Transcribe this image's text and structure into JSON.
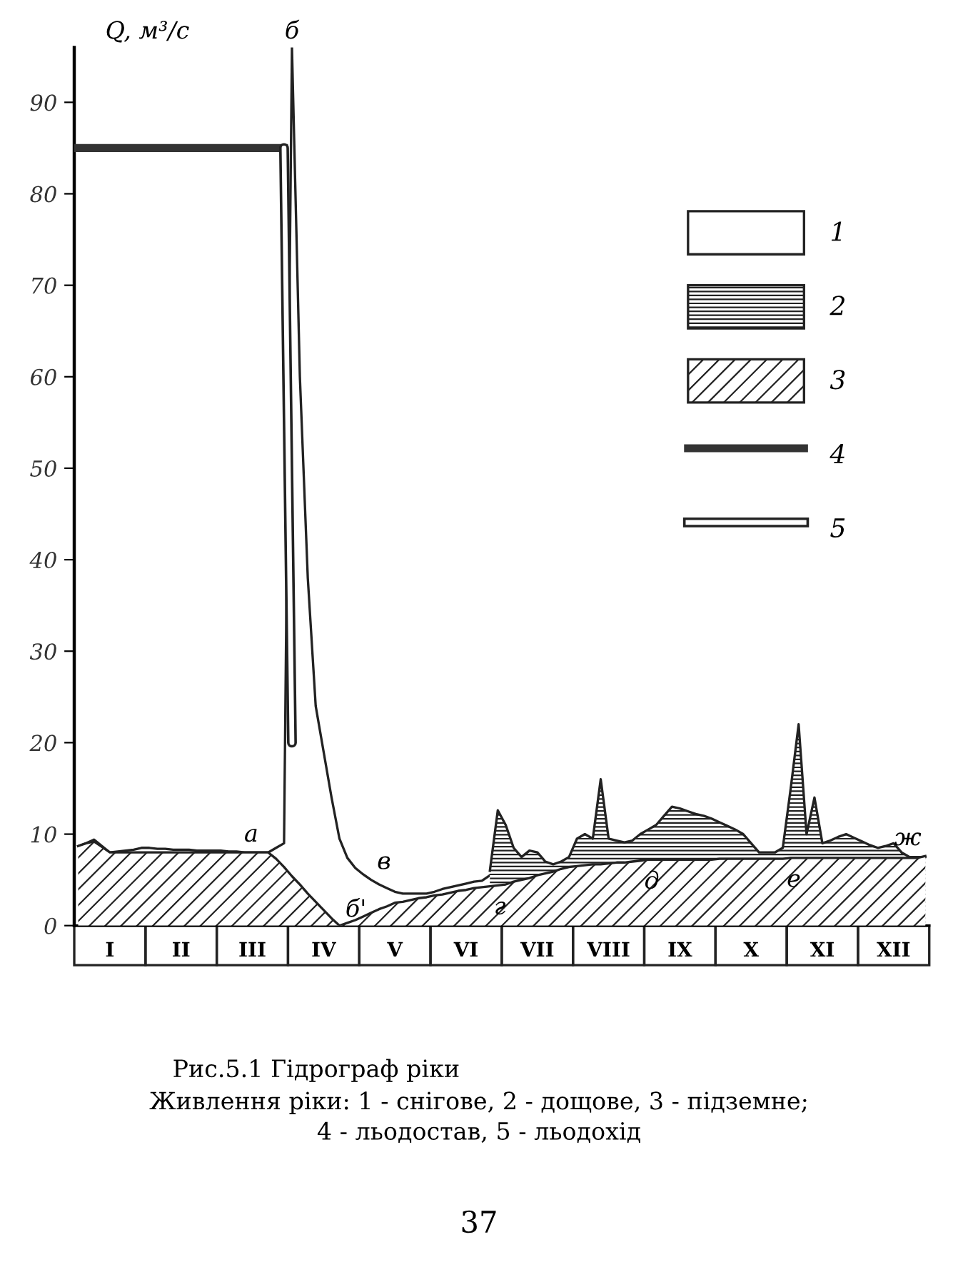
{
  "chart_data": {
    "type": "area",
    "title": "Рис.5.1 Гідрограф ріки",
    "ylabel": "Q, м³/с",
    "ylim": [
      0,
      96
    ],
    "yticks": [
      0,
      10,
      20,
      30,
      40,
      50,
      60,
      70,
      80,
      90
    ],
    "categories": [
      null,
      null,
      null,
      null,
      "I",
      null,
      null,
      null,
      null,
      null,
      null,
      null,
      null,
      "II",
      null,
      null,
      null,
      null,
      null,
      null,
      null,
      null,
      "III",
      null,
      null,
      null,
      null,
      null,
      null,
      null,
      null,
      "IV",
      null,
      null,
      null,
      null,
      null,
      null,
      null,
      null,
      "V",
      null,
      null,
      null,
      null,
      null,
      null,
      null,
      null,
      "VI",
      null,
      null,
      null,
      null,
      null,
      null,
      null,
      null,
      "VII",
      null,
      null,
      null,
      null,
      null,
      null,
      null,
      null,
      "VIII",
      null,
      null,
      null,
      null,
      null,
      null,
      null,
      null,
      "IX",
      null,
      null,
      null,
      null,
      null,
      null,
      null,
      null,
      "X",
      null,
      null,
      null,
      null,
      null,
      null,
      null,
      null,
      "XI",
      null,
      null,
      null,
      null,
      null,
      null,
      null,
      null,
      "XII",
      null,
      null,
      null,
      null
    ],
    "series": [
      {
        "name": "1",
        "color": "#ffffff",
        "values": [
          8.7,
          9.0,
          9.4,
          8.7,
          8,
          8.1,
          8.2,
          8.3,
          8.5,
          8.5,
          8.4,
          8.4,
          8.3,
          8.3,
          8.3,
          8.2,
          8.2,
          8.2,
          8.2,
          8.1,
          8.1,
          8,
          8,
          8,
          8,
          8.5,
          9,
          96,
          60,
          38,
          24,
          19,
          14,
          9.5,
          7.4,
          6.3,
          5.6,
          5,
          4.5,
          4.1,
          3.7,
          3.5,
          3.5,
          3.5,
          3.5,
          3.7,
          4,
          4.2,
          4.4,
          4.6,
          4.8,
          4.9,
          5.5,
          null,
          null,
          null,
          null,
          null,
          null,
          null,
          null,
          null,
          null,
          null,
          null,
          null,
          null,
          null,
          null,
          null,
          null,
          null,
          null,
          null,
          null,
          null,
          null,
          null,
          null,
          null,
          null,
          null,
          null,
          null,
          null,
          null,
          null,
          null,
          null,
          null,
          null,
          null,
          null,
          null,
          null,
          null,
          null,
          null,
          null,
          null,
          null,
          null,
          null,
          null,
          null,
          null,
          null,
          null
        ]
      },
      {
        "name": "2",
        "color": "#ffffff",
        "values": [
          null,
          null,
          null,
          null,
          null,
          null,
          null,
          null,
          null,
          null,
          null,
          null,
          null,
          null,
          null,
          null,
          null,
          null,
          null,
          null,
          null,
          null,
          null,
          null,
          null,
          null,
          null,
          null,
          null,
          null,
          null,
          null,
          null,
          null,
          null,
          null,
          null,
          null,
          null,
          null,
          null,
          null,
          null,
          null,
          null,
          null,
          null,
          null,
          null,
          null,
          null,
          null,
          6,
          12.6,
          11,
          8.5,
          7.5,
          8.2,
          8,
          7,
          6.7,
          7,
          7.5,
          9.5,
          10,
          9.5,
          16,
          9.5,
          9.3,
          9.1,
          9.3,
          10,
          10.5,
          11,
          12,
          13,
          12.8,
          12.5,
          12.2,
          12,
          11.7,
          11.3,
          10.9,
          10.5,
          10,
          9,
          8,
          8,
          8,
          8.5,
          15,
          22,
          10,
          14,
          9,
          9.3,
          9.7,
          10,
          9.6,
          9.2,
          8.8,
          8.5,
          8.7,
          9,
          8,
          7.5,
          7.5,
          7.5
        ]
      },
      {
        "name": "3",
        "color": "#ffffff",
        "values": [
          8.7,
          9.0,
          9.2,
          8.6,
          8,
          8,
          8,
          8,
          8,
          8,
          8,
          8,
          8,
          8,
          8,
          8,
          8,
          8,
          8,
          8,
          8,
          8,
          8,
          8,
          8,
          7.3,
          6.4,
          5.4,
          4.5,
          3.5,
          2.6,
          1.7,
          0.8,
          0,
          0.3,
          0.6,
          1.0,
          1.4,
          1.8,
          2.1,
          2.5,
          2.6,
          2.8,
          3.0,
          3.1,
          3.3,
          3.4,
          3.6,
          3.8,
          3.9,
          4.1,
          4.2,
          4.3,
          4.4,
          4.5,
          4.8,
          5.0,
          5.2,
          5.5,
          5.7,
          5.9,
          6.2,
          6.4,
          6.5,
          6.6,
          6.7,
          6.7,
          6.8,
          6.9,
          6.9,
          7.0,
          7.1,
          7.2,
          7.2,
          7.2,
          7.2,
          7.2,
          7.2,
          7.2,
          7.2,
          7.2,
          7.3,
          7.3,
          7.3,
          7.3,
          7.3,
          7.3,
          7.3,
          7.3,
          7.3,
          7.4,
          7.4,
          7.4,
          7.4,
          7.4,
          7.4,
          7.4,
          7.4,
          7.4,
          7.4,
          7.4,
          7.4,
          7.4,
          7.4,
          7.4,
          7.4,
          7.4,
          7.6
        ]
      },
      {
        "name": "4",
        "type": "line",
        "color": "#333333",
        "values": [
          85,
          85,
          85,
          85,
          85,
          85,
          85,
          85,
          85,
          85,
          85,
          85,
          85,
          85,
          85,
          85,
          85,
          85,
          85,
          85,
          85,
          85,
          85,
          85,
          85,
          85,
          85,
          null,
          null,
          null,
          null,
          null,
          null,
          null,
          null,
          null,
          null,
          null,
          null,
          null,
          null,
          null,
          null,
          null,
          null,
          null,
          null,
          null,
          null,
          null,
          null,
          null,
          null,
          null,
          null,
          null,
          null,
          null,
          null,
          null,
          null,
          null,
          null,
          null,
          null,
          null,
          null,
          null,
          null,
          null,
          null,
          null,
          null,
          null,
          null,
          null,
          null,
          null,
          null,
          null,
          null,
          null,
          null,
          null,
          null,
          null,
          null,
          null,
          null,
          null,
          null,
          null,
          null,
          null,
          null,
          null,
          null,
          null,
          null,
          null,
          null,
          null,
          null,
          null,
          null,
          null,
          null,
          null
        ]
      },
      {
        "name": "5",
        "type": "line",
        "color": "#222222",
        "values": [
          null,
          null,
          null,
          null,
          null,
          null,
          null,
          null,
          null,
          null,
          null,
          null,
          null,
          null,
          null,
          null,
          null,
          null,
          null,
          null,
          null,
          null,
          null,
          null,
          null,
          null,
          85,
          20,
          null,
          null,
          null,
          null,
          null,
          null,
          null,
          null,
          null,
          null,
          null,
          null,
          null,
          null,
          null,
          null,
          null,
          null,
          null,
          null,
          null,
          null,
          null,
          null,
          null,
          null,
          null,
          null,
          null,
          null,
          null,
          null,
          null,
          null,
          null,
          null,
          null,
          null,
          null,
          null,
          null,
          null,
          null,
          null,
          null,
          null,
          null,
          null,
          null,
          null,
          null,
          null,
          null,
          null,
          null,
          null,
          null,
          null,
          null,
          null,
          null,
          null,
          null,
          null,
          null,
          null,
          null,
          null,
          null,
          null,
          null,
          null,
          null,
          null,
          null,
          null,
          null,
          null,
          null,
          null
        ]
      }
    ],
    "legend": "top right",
    "annotations": [
      {
        "text": "а",
        "y": 8
      },
      {
        "text": "б",
        "y": 96
      },
      {
        "text": "б'",
        "y": 0
      },
      {
        "text": "в",
        "y": 5
      },
      {
        "text": "г",
        "y": 4.3
      },
      {
        "text": "д",
        "y": 7.1
      },
      {
        "text": "е",
        "y": 7.3
      },
      {
        "text": "ж",
        "y": 7.6
      },
      "Живлення ріки: 1 - снігове, 2 - дощове, 3 - підземне;\n4 - льодостав, 5 - льодохід",
      "37"
    ]
  }
}
